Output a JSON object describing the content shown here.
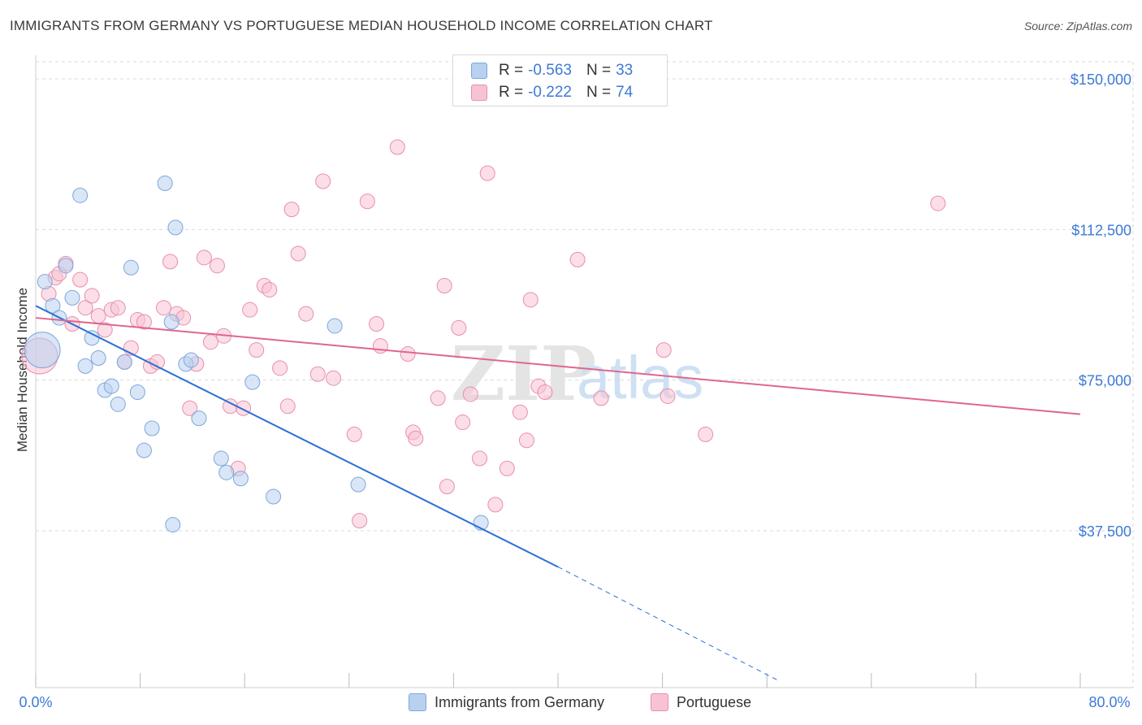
{
  "header": {
    "title": "IMMIGRANTS FROM GERMANY VS PORTUGUESE MEDIAN HOUSEHOLD INCOME CORRELATION CHART",
    "source": "Source: ZipAtlas.com"
  },
  "watermark": {
    "zip": "ZIP",
    "atlas": "atlas"
  },
  "legend": {
    "series1": {
      "r_label": "R =",
      "r_value": "-0.563",
      "n_label": "N =",
      "n_value": "33"
    },
    "series2": {
      "r_label": "R =",
      "r_value": "-0.222",
      "n_label": "N =",
      "n_value": "74"
    }
  },
  "colors": {
    "germany_fill": "#b8d1f0",
    "germany_stroke": "#7fa6dc",
    "germany_line": "#2a6fd6",
    "portuguese_fill": "#f7c3d4",
    "portuguese_stroke": "#e88fab",
    "portuguese_line": "#e0668e",
    "tick_text": "#3d7ad6",
    "grid": "#d9d9d9"
  },
  "chart_data": {
    "type": "scatter",
    "title": "IMMIGRANTS FROM GERMANY VS PORTUGUESE MEDIAN HOUSEHOLD INCOME CORRELATION CHART",
    "xlabel": "",
    "ylabel": "Median Household Income",
    "xlim": [
      0,
      80
    ],
    "ylim": [
      0,
      155000
    ],
    "x_tick_labels": [
      "0.0%",
      "80.0%"
    ],
    "y_ticks": [
      37500,
      75000,
      112500,
      150000
    ],
    "y_tick_labels": [
      "$37,500",
      "$75,000",
      "$112,500",
      "$150,000"
    ],
    "grid": true,
    "series": [
      {
        "name": "Immigrants from Germany",
        "trend": {
          "x": [
            0,
            40
          ],
          "y": [
            93500,
            28500
          ],
          "dashed_to": [
            57,
            0
          ]
        },
        "points": [
          {
            "x": 0.5,
            "y": 82500,
            "big": true
          },
          {
            "x": 0.7,
            "y": 99500
          },
          {
            "x": 1.3,
            "y": 93500
          },
          {
            "x": 1.8,
            "y": 90500
          },
          {
            "x": 2.3,
            "y": 103500
          },
          {
            "x": 2.8,
            "y": 95500
          },
          {
            "x": 3.4,
            "y": 121000
          },
          {
            "x": 3.8,
            "y": 78500
          },
          {
            "x": 4.3,
            "y": 85500
          },
          {
            "x": 4.8,
            "y": 80500
          },
          {
            "x": 5.3,
            "y": 72500
          },
          {
            "x": 5.8,
            "y": 73500
          },
          {
            "x": 6.3,
            "y": 69000
          },
          {
            "x": 6.8,
            "y": 79500
          },
          {
            "x": 7.3,
            "y": 103000
          },
          {
            "x": 7.8,
            "y": 72000
          },
          {
            "x": 8.3,
            "y": 57500
          },
          {
            "x": 8.9,
            "y": 63000
          },
          {
            "x": 9.9,
            "y": 124000
          },
          {
            "x": 10.4,
            "y": 89500
          },
          {
            "x": 10.7,
            "y": 113000
          },
          {
            "x": 11.5,
            "y": 79000
          },
          {
            "x": 11.9,
            "y": 80000
          },
          {
            "x": 12.5,
            "y": 65500
          },
          {
            "x": 14.2,
            "y": 55500
          },
          {
            "x": 14.6,
            "y": 52000
          },
          {
            "x": 15.7,
            "y": 50500
          },
          {
            "x": 16.6,
            "y": 74500
          },
          {
            "x": 18.2,
            "y": 46000
          },
          {
            "x": 22.9,
            "y": 88500
          },
          {
            "x": 24.7,
            "y": 49000
          },
          {
            "x": 10.5,
            "y": 39000
          },
          {
            "x": 34.1,
            "y": 39500
          }
        ]
      },
      {
        "name": "Portuguese",
        "trend": {
          "x": [
            0,
            80
          ],
          "y": [
            90500,
            66500
          ]
        },
        "points": [
          {
            "x": 0.3,
            "y": 81000,
            "big": true
          },
          {
            "x": 1.0,
            "y": 96500
          },
          {
            "x": 1.5,
            "y": 100500
          },
          {
            "x": 1.8,
            "y": 101500
          },
          {
            "x": 2.3,
            "y": 104000
          },
          {
            "x": 2.8,
            "y": 89000
          },
          {
            "x": 3.4,
            "y": 100000
          },
          {
            "x": 3.8,
            "y": 93000
          },
          {
            "x": 4.3,
            "y": 96000
          },
          {
            "x": 4.8,
            "y": 91000
          },
          {
            "x": 5.3,
            "y": 87500
          },
          {
            "x": 5.8,
            "y": 92500
          },
          {
            "x": 6.3,
            "y": 93000
          },
          {
            "x": 6.8,
            "y": 79500
          },
          {
            "x": 7.3,
            "y": 83000
          },
          {
            "x": 7.8,
            "y": 90000
          },
          {
            "x": 8.3,
            "y": 89500
          },
          {
            "x": 8.8,
            "y": 78500
          },
          {
            "x": 9.3,
            "y": 79500
          },
          {
            "x": 9.8,
            "y": 93000
          },
          {
            "x": 10.3,
            "y": 104500
          },
          {
            "x": 10.8,
            "y": 91500
          },
          {
            "x": 11.3,
            "y": 90500
          },
          {
            "x": 11.8,
            "y": 68000
          },
          {
            "x": 12.3,
            "y": 79000
          },
          {
            "x": 12.9,
            "y": 105500
          },
          {
            "x": 13.4,
            "y": 84500
          },
          {
            "x": 13.9,
            "y": 103500
          },
          {
            "x": 14.4,
            "y": 86000
          },
          {
            "x": 14.9,
            "y": 68500
          },
          {
            "x": 15.5,
            "y": 53000
          },
          {
            "x": 15.9,
            "y": 68000
          },
          {
            "x": 16.4,
            "y": 92500
          },
          {
            "x": 16.9,
            "y": 82500
          },
          {
            "x": 17.5,
            "y": 98500
          },
          {
            "x": 17.9,
            "y": 97500
          },
          {
            "x": 18.7,
            "y": 78000
          },
          {
            "x": 19.3,
            "y": 68500
          },
          {
            "x": 19.6,
            "y": 117500
          },
          {
            "x": 20.1,
            "y": 106500
          },
          {
            "x": 20.7,
            "y": 91500
          },
          {
            "x": 21.6,
            "y": 76500
          },
          {
            "x": 22.0,
            "y": 124500
          },
          {
            "x": 22.8,
            "y": 75500
          },
          {
            "x": 24.4,
            "y": 61500
          },
          {
            "x": 24.8,
            "y": 40000
          },
          {
            "x": 25.4,
            "y": 119500
          },
          {
            "x": 26.1,
            "y": 89000
          },
          {
            "x": 26.4,
            "y": 83500
          },
          {
            "x": 27.7,
            "y": 133000
          },
          {
            "x": 28.5,
            "y": 81500
          },
          {
            "x": 28.9,
            "y": 62000
          },
          {
            "x": 29.1,
            "y": 60500
          },
          {
            "x": 30.8,
            "y": 70500
          },
          {
            "x": 31.3,
            "y": 98500
          },
          {
            "x": 31.5,
            "y": 48500
          },
          {
            "x": 32.4,
            "y": 88000
          },
          {
            "x": 32.7,
            "y": 64500
          },
          {
            "x": 33.3,
            "y": 71500
          },
          {
            "x": 34.0,
            "y": 55500
          },
          {
            "x": 34.6,
            "y": 126500
          },
          {
            "x": 35.2,
            "y": 44000
          },
          {
            "x": 36.1,
            "y": 53000
          },
          {
            "x": 37.1,
            "y": 67000
          },
          {
            "x": 37.6,
            "y": 60000
          },
          {
            "x": 37.9,
            "y": 95000
          },
          {
            "x": 38.5,
            "y": 73500
          },
          {
            "x": 39.0,
            "y": 72000
          },
          {
            "x": 41.5,
            "y": 105000
          },
          {
            "x": 43.3,
            "y": 70500
          },
          {
            "x": 48.1,
            "y": 82500
          },
          {
            "x": 48.4,
            "y": 71000
          },
          {
            "x": 51.3,
            "y": 61500
          },
          {
            "x": 69.1,
            "y": 119000
          }
        ]
      }
    ],
    "legend": [
      "Immigrants from Germany",
      "Portuguese"
    ]
  }
}
